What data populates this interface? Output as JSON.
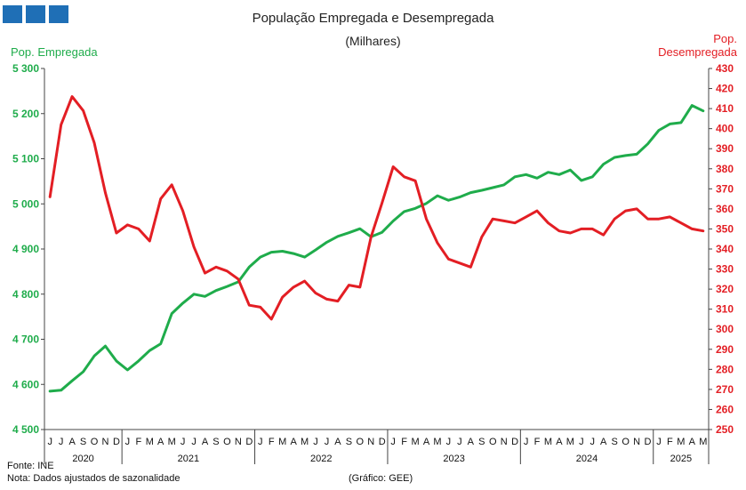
{
  "chart_data": {
    "type": "line",
    "title": "População Empregada e Desempregada",
    "subtitle": "(Milhares)",
    "y_left": {
      "label": "Pop. Empregada",
      "range": [
        4500,
        5300
      ],
      "ticks": [
        4500,
        4600,
        4700,
        4800,
        4900,
        5000,
        5100,
        5200,
        5300
      ],
      "tick_labels": [
        "4 500",
        "4 600",
        "4 700",
        "4 800",
        "4 900",
        "5 000",
        "5 100",
        "5 200",
        "5 300"
      ]
    },
    "y_right": {
      "label_line1": "Pop.",
      "label_line2": "Desempregada",
      "range": [
        250,
        430
      ],
      "ticks": [
        250,
        260,
        270,
        280,
        290,
        300,
        310,
        320,
        330,
        340,
        350,
        360,
        370,
        380,
        390,
        400,
        410,
        420,
        430
      ]
    },
    "month_labels": [
      "J",
      "J",
      "A",
      "S",
      "O",
      "N",
      "D",
      "J",
      "F",
      "M",
      "A",
      "M",
      "J",
      "J",
      "A",
      "S",
      "O",
      "N",
      "D",
      "J",
      "F",
      "M",
      "A",
      "M",
      "J",
      "J",
      "A",
      "S",
      "O",
      "N",
      "D",
      "J",
      "F",
      "M",
      "A",
      "M",
      "J",
      "J",
      "A",
      "S",
      "O",
      "N",
      "D",
      "J",
      "F",
      "M",
      "A",
      "M",
      "J",
      "J",
      "A",
      "S",
      "O",
      "N",
      "D",
      "J",
      "F",
      "M",
      "A",
      "M"
    ],
    "year_labels": [
      "2020",
      "2021",
      "2022",
      "2023",
      "2024",
      "2025"
    ],
    "year_month_counts": [
      7,
      12,
      12,
      12,
      12,
      5
    ],
    "series": [
      {
        "name": "Pop. Empregada",
        "axis": "left",
        "color": "#1fac4b",
        "values": [
          4585,
          4587,
          4608,
          4628,
          4663,
          4685,
          4652,
          4632,
          4652,
          4675,
          4690,
          4757,
          4780,
          4800,
          4795,
          4808,
          4817,
          4827,
          4860,
          4882,
          4893,
          4895,
          4890,
          4882,
          4898,
          4915,
          4928,
          4936,
          4945,
          4927,
          4937,
          4962,
          4983,
          4990,
          5001,
          5018,
          5008,
          5015,
          5025,
          5030,
          5036,
          5042,
          5060,
          5065,
          5057,
          5070,
          5065,
          5075,
          5052,
          5060,
          5088,
          5103,
          5107,
          5110,
          5133,
          5163,
          5177,
          5180,
          5218,
          5206
        ]
      },
      {
        "name": "Pop. Desempregada",
        "axis": "right",
        "color": "#e31e24",
        "values": [
          366,
          402,
          416,
          409,
          393,
          368,
          348,
          352,
          350,
          344,
          365,
          372,
          359,
          341,
          328,
          331,
          329,
          325,
          312,
          311,
          305,
          316,
          321,
          324,
          318,
          315,
          314,
          322,
          321,
          346,
          363,
          381,
          376,
          374,
          355,
          343,
          335,
          333,
          331,
          346,
          355,
          354,
          353,
          356,
          359,
          353,
          349,
          348,
          350,
          350,
          347,
          355,
          359,
          360,
          355,
          355,
          356,
          353,
          350,
          349
        ]
      }
    ],
    "source": "Fonte: INE",
    "note": "Nota: Dados ajustados de sazonalidade",
    "credit": "(Gráfico: GEE)"
  },
  "colors": {
    "employed": "#1fac4b",
    "unemployed": "#e31e24",
    "logo": "#1f6fb6"
  }
}
